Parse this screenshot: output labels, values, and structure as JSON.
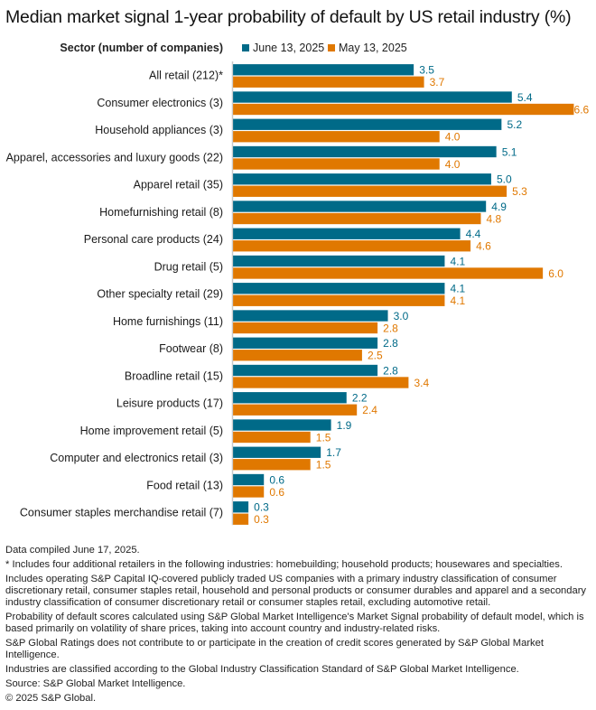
{
  "title": "Median market signal 1-year probability of default by US retail industry (%)",
  "colors": {
    "june": "#006a88",
    "may": "#e07800",
    "axis": "#c8c8c8"
  },
  "chart_data": {
    "type": "bar",
    "orientation": "horizontal",
    "title": "Median market signal 1-year probability of default by US retail industry (%)",
    "category_header": "Sector (number of companies)",
    "xlabel": "",
    "ylabel": "Sector (number of companies)",
    "xlim": [
      0,
      6.6
    ],
    "grid": false,
    "legend_position": "top",
    "categories": [
      "All retail (212)*",
      "Consumer electronics (3)",
      "Household appliances (3)",
      "Apparel, accessories and luxury goods (22)",
      "Apparel retail (35)",
      "Homefurnishing retail (8)",
      "Personal care products (24)",
      "Drug retail (5)",
      "Other specialty retail (29)",
      "Home furnishings (11)",
      "Footwear (8)",
      "Broadline retail (15)",
      "Leisure products (17)",
      "Home improvement retail (5)",
      "Computer and electronics retail (3)",
      "Food retail (13)",
      "Consumer staples merchandise retail (7)"
    ],
    "series": [
      {
        "name": "June 13, 2025",
        "color": "#006a88",
        "values": [
          3.5,
          5.4,
          5.2,
          5.1,
          5.0,
          4.9,
          4.4,
          4.1,
          4.1,
          3.0,
          2.8,
          2.8,
          2.2,
          1.9,
          1.7,
          0.6,
          0.3
        ]
      },
      {
        "name": "May 13, 2025",
        "color": "#e07800",
        "values": [
          3.7,
          6.6,
          4.0,
          4.0,
          5.3,
          4.8,
          4.6,
          6.0,
          4.1,
          2.8,
          2.5,
          3.4,
          2.4,
          1.5,
          1.5,
          0.6,
          0.3
        ]
      }
    ]
  },
  "notes": [
    "Data compiled June 17, 2025.",
    "* Includes four additional retailers in the following industries: homebuilding; household products; housewares and specialties.",
    "Includes operating S&P Capital IQ-covered publicly traded US companies with a primary industry classification of consumer discretionary retail, consumer staples retail, household and personal products or consumer durables and apparel and a secondary industry classification of consumer discretionary retail or consumer staples retail, excluding automotive retail.",
    "Probability of default scores calculated using S&P Global Market Intelligence's Market Signal probability of default model, which is based primarily on volatility of share prices, taking into account country and industry-related risks.",
    "S&P Global Ratings does not contribute to or participate in the creation of credit scores generated by S&P Global Market Intelligence.",
    "Industries are classified according to the Global Industry Classification Standard of S&P Global Market Intelligence.",
    "Source: S&P Global Market Intelligence.",
    "© 2025 S&P Global."
  ]
}
